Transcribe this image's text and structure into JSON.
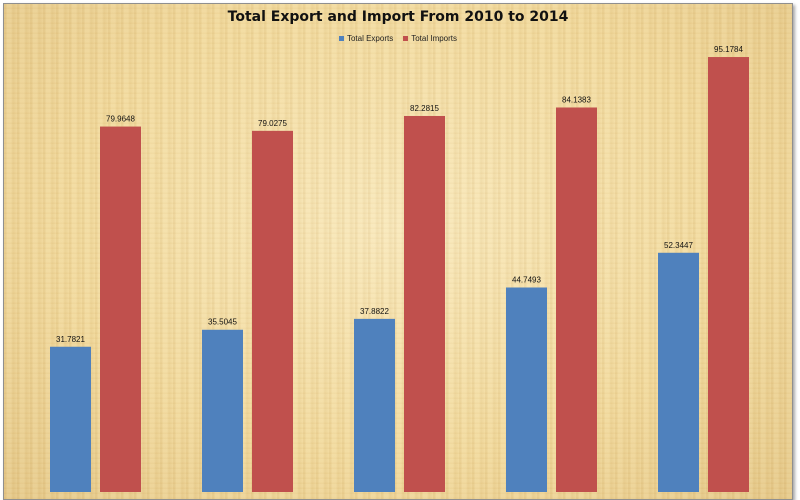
{
  "chart_data": {
    "type": "bar",
    "title": "Total Export and Import From 2010 to 2014",
    "categories": [
      "",
      "",
      "",
      "",
      ""
    ],
    "series": [
      {
        "name": "Total Exports",
        "color": "#4f81bd",
        "values": [
          31.7821,
          35.5045,
          37.8822,
          44.7493,
          52.3447
        ]
      },
      {
        "name": "Total Imports",
        "color": "#c0504d",
        "values": [
          79.9648,
          79.0275,
          82.2815,
          84.1383,
          95.1784
        ]
      }
    ],
    "xlabel": "",
    "ylabel": "",
    "ylim": [
      0,
      100
    ],
    "grid": false,
    "legend": "top"
  }
}
